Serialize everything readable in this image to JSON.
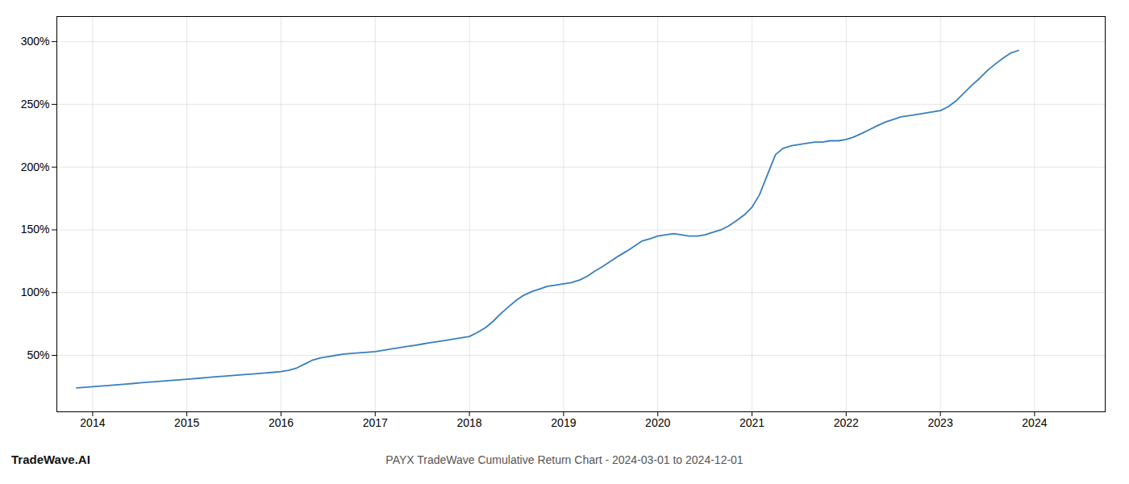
{
  "chart_data": {
    "type": "line",
    "title": "PAYX TradeWave Cumulative Return Chart - 2024-03-01 to 2024-12-01",
    "annotations": [
      "TradeWave.AI"
    ],
    "x": [
      2013.83,
      2014.0,
      2014.08,
      2014.17,
      2014.25,
      2014.33,
      2014.42,
      2014.5,
      2014.58,
      2014.67,
      2014.75,
      2014.83,
      2014.92,
      2015.0,
      2015.08,
      2015.17,
      2015.25,
      2015.33,
      2015.42,
      2015.5,
      2015.58,
      2015.67,
      2015.75,
      2015.83,
      2015.92,
      2016.0,
      2016.08,
      2016.17,
      2016.25,
      2016.33,
      2016.42,
      2016.5,
      2016.58,
      2016.67,
      2016.75,
      2016.83,
      2016.92,
      2017.0,
      2017.08,
      2017.17,
      2017.25,
      2017.33,
      2017.42,
      2017.5,
      2017.58,
      2017.67,
      2017.75,
      2017.83,
      2017.92,
      2018.0,
      2018.08,
      2018.17,
      2018.25,
      2018.33,
      2018.42,
      2018.5,
      2018.58,
      2018.67,
      2018.75,
      2018.83,
      2018.92,
      2019.0,
      2019.08,
      2019.17,
      2019.25,
      2019.33,
      2019.42,
      2019.5,
      2019.58,
      2019.67,
      2019.75,
      2019.83,
      2019.92,
      2020.0,
      2020.08,
      2020.17,
      2020.25,
      2020.33,
      2020.42,
      2020.5,
      2020.58,
      2020.67,
      2020.75,
      2020.83,
      2020.92,
      2021.0,
      2021.08,
      2021.17,
      2021.25,
      2021.33,
      2021.42,
      2021.5,
      2021.58,
      2021.67,
      2021.75,
      2021.83,
      2021.92,
      2022.0,
      2022.08,
      2022.17,
      2022.25,
      2022.33,
      2022.42,
      2022.5,
      2022.58,
      2022.67,
      2022.75,
      2022.83,
      2022.92,
      2023.0,
      2023.08,
      2023.17,
      2023.25,
      2023.33,
      2023.42,
      2023.5,
      2023.58,
      2023.67,
      2023.75,
      2023.83
    ],
    "series": [
      {
        "color": "#3a7ebf",
        "values": [
          24,
          25,
          25.5,
          26,
          26.5,
          27,
          27.5,
          28,
          28.5,
          29,
          29.5,
          30,
          30.5,
          31,
          31.5,
          32,
          32.5,
          33,
          33.5,
          34,
          34.5,
          35,
          35.5,
          36,
          36.5,
          37,
          38,
          40,
          43,
          46,
          48,
          49,
          50,
          51,
          51.5,
          52,
          52.5,
          53,
          54,
          55,
          56,
          57,
          58,
          59,
          60,
          61,
          62,
          63,
          64,
          65,
          68,
          72,
          77,
          83,
          89,
          94,
          98,
          101,
          103,
          105,
          106,
          107,
          108,
          110,
          113,
          117,
          121,
          125,
          129,
          133,
          137,
          141,
          143,
          145,
          146,
          147,
          146,
          145,
          145,
          146,
          148,
          150,
          153,
          157,
          162,
          168,
          178,
          195,
          210,
          215,
          217,
          218,
          219,
          220,
          220,
          221,
          221,
          222,
          224,
          227,
          230,
          233,
          236,
          238,
          240,
          241,
          242,
          243,
          244,
          245,
          248,
          253,
          259,
          265,
          271,
          277,
          282,
          287,
          291,
          293
        ]
      }
    ],
    "xlim": [
      2013.62,
      2024.75
    ],
    "xticks": [
      2014,
      2015,
      2016,
      2017,
      2018,
      2019,
      2020,
      2021,
      2022,
      2023,
      2024
    ],
    "ylim": [
      5,
      320
    ],
    "yticks": [
      {
        "value": 50,
        "label": "50%"
      },
      {
        "value": 100,
        "label": "100%"
      },
      {
        "value": 150,
        "label": "150%"
      },
      {
        "value": 200,
        "label": "200%"
      },
      {
        "value": 250,
        "label": "250%"
      },
      {
        "value": 300,
        "label": "300%"
      }
    ],
    "grid": true
  }
}
